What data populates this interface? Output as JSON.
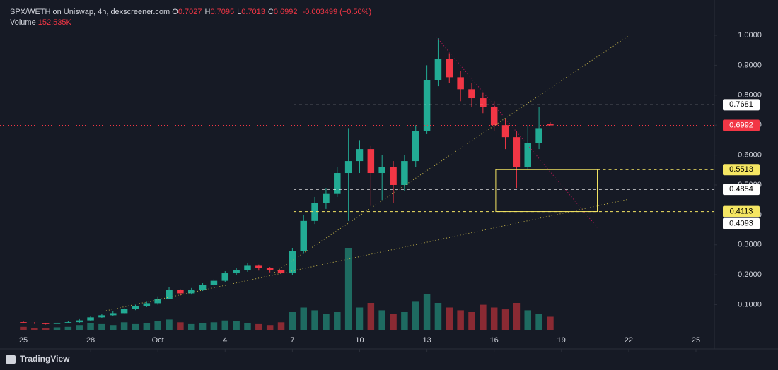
{
  "chart_data": {
    "type": "candlestick",
    "title": "SPX/WETH on Uniswap, 4h, dexscreener.com",
    "ohlc_header": [
      {
        "key": "O",
        "value": "0.7027"
      },
      {
        "key": "H",
        "value": "0.7095"
      },
      {
        "key": "L",
        "value": "0.7013"
      },
      {
        "key": "C",
        "value": "0.6992"
      }
    ],
    "change": "-0.003499 (−0.50%)",
    "volume_label": "Volume",
    "volume_value": "152.535K",
    "x": [
      0,
      0.5,
      1,
      1.5,
      2,
      2.5,
      3,
      3.5,
      4,
      4.5,
      5,
      5.5,
      6,
      6.5,
      7,
      7.5,
      8,
      8.5,
      9,
      9.5,
      10,
      10.5,
      11,
      11.5,
      12,
      12.5,
      13,
      13.5,
      14,
      14.5,
      15,
      15.5,
      16,
      16.5,
      17,
      17.5,
      18,
      18.5,
      19,
      19.5,
      20,
      20.5,
      21,
      21.5,
      22,
      22.5,
      23,
      23.5
    ],
    "open": [
      0.042,
      0.04,
      0.038,
      0.036,
      0.04,
      0.042,
      0.048,
      0.058,
      0.065,
      0.072,
      0.085,
      0.095,
      0.105,
      0.12,
      0.15,
      0.138,
      0.15,
      0.165,
      0.18,
      0.205,
      0.215,
      0.23,
      0.222,
      0.215,
      0.205,
      0.28,
      0.38,
      0.44,
      0.47,
      0.54,
      0.58,
      0.62,
      0.54,
      0.56,
      0.5,
      0.58,
      0.68,
      0.85,
      0.92,
      0.86,
      0.82,
      0.79,
      0.76,
      0.7,
      0.66,
      0.56,
      0.64,
      0.7027
    ],
    "high": [
      0.045,
      0.042,
      0.04,
      0.043,
      0.046,
      0.052,
      0.062,
      0.07,
      0.078,
      0.09,
      0.1,
      0.112,
      0.128,
      0.158,
      0.152,
      0.156,
      0.172,
      0.186,
      0.212,
      0.222,
      0.238,
      0.234,
      0.226,
      0.218,
      0.29,
      0.4,
      0.46,
      0.49,
      0.56,
      0.69,
      0.65,
      0.63,
      0.6,
      0.58,
      0.6,
      0.7,
      0.9,
      0.99,
      0.94,
      0.88,
      0.84,
      0.81,
      0.78,
      0.72,
      0.68,
      0.7,
      0.76,
      0.7095
    ],
    "low": [
      0.038,
      0.036,
      0.034,
      0.035,
      0.038,
      0.04,
      0.046,
      0.055,
      0.062,
      0.07,
      0.082,
      0.092,
      0.1,
      0.118,
      0.13,
      0.134,
      0.146,
      0.16,
      0.176,
      0.2,
      0.21,
      0.214,
      0.208,
      0.195,
      0.2,
      0.27,
      0.37,
      0.42,
      0.46,
      0.38,
      0.54,
      0.43,
      0.45,
      0.44,
      0.48,
      0.56,
      0.67,
      0.83,
      0.84,
      0.78,
      0.76,
      0.74,
      0.68,
      0.62,
      0.49,
      0.55,
      0.62,
      0.7013
    ],
    "close": [
      0.04,
      0.038,
      0.036,
      0.04,
      0.042,
      0.048,
      0.058,
      0.065,
      0.072,
      0.085,
      0.095,
      0.105,
      0.12,
      0.15,
      0.138,
      0.15,
      0.165,
      0.18,
      0.205,
      0.215,
      0.23,
      0.222,
      0.215,
      0.205,
      0.28,
      0.38,
      0.44,
      0.47,
      0.54,
      0.58,
      0.62,
      0.54,
      0.56,
      0.5,
      0.58,
      0.68,
      0.85,
      0.92,
      0.86,
      0.82,
      0.79,
      0.76,
      0.7,
      0.66,
      0.56,
      0.64,
      0.69,
      0.6992
    ],
    "volume": [
      40,
      30,
      25,
      35,
      40,
      60,
      80,
      70,
      60,
      90,
      70,
      80,
      100,
      120,
      90,
      70,
      80,
      90,
      110,
      100,
      80,
      70,
      60,
      90,
      200,
      250,
      220,
      180,
      200,
      900,
      250,
      300,
      220,
      180,
      200,
      320,
      400,
      300,
      250,
      220,
      200,
      280,
      250,
      230,
      300,
      220,
      180,
      150
    ],
    "volume_lim": [
      0,
      1000
    ],
    "up_color": "#22ab94",
    "down_color": "#f23645",
    "volume_up_color": "#1e6b61",
    "volume_down_color": "#8a2a33",
    "xlim": [
      -1.04,
      30.82
    ],
    "xticks": [
      {
        "value": 0,
        "label": "25"
      },
      {
        "value": 3,
        "label": "28"
      },
      {
        "value": 6,
        "label": "Oct"
      },
      {
        "value": 9,
        "label": "4"
      },
      {
        "value": 12,
        "label": "7"
      },
      {
        "value": 15,
        "label": "10"
      },
      {
        "value": 18,
        "label": "13"
      },
      {
        "value": 21,
        "label": "16"
      },
      {
        "value": 24,
        "label": "19"
      },
      {
        "value": 27,
        "label": "22"
      },
      {
        "value": 30,
        "label": "25"
      }
    ],
    "ylim": [
      0.014,
      1.118
    ],
    "yticks": [
      {
        "value": 0.1,
        "label": "0.1000"
      },
      {
        "value": 0.2,
        "label": "0.2000"
      },
      {
        "value": 0.3,
        "label": "0.3000"
      },
      {
        "value": 0.4,
        "label": "0.4000"
      },
      {
        "value": 0.5,
        "label": "0.5000"
      },
      {
        "value": 0.6,
        "label": "0.6000"
      },
      {
        "value": 0.7,
        "label": "0.7000"
      },
      {
        "value": 0.8,
        "label": "0.8000"
      },
      {
        "value": 0.9,
        "label": "0.9000"
      },
      {
        "value": 1,
        "label": "1.0000"
      }
    ],
    "grid": false,
    "levels": [
      {
        "value": 0.7681,
        "from": 12.05,
        "color": "#ffffff",
        "dash": "4 4",
        "label_bg": "#ffffff",
        "label_fg": "#000000"
      },
      {
        "value": 0.6992,
        "from": -1.04,
        "color": "#f23645",
        "dash": "1 3",
        "label_bg": "#f23645",
        "label_fg": "#ffffff"
      },
      {
        "value": 0.5513,
        "from": 25.6,
        "color": "#f5e663",
        "dash": "4 4",
        "label_bg": "#f5e663",
        "label_fg": "#000000"
      },
      {
        "value": 0.4854,
        "from": 12.05,
        "color": "#ffffff",
        "dash": "4 4",
        "label_bg": "#ffffff",
        "label_fg": "#000000"
      },
      {
        "value": 0.4113,
        "from": 12.05,
        "color": "#f5e663",
        "dash": "4 4",
        "label_bg": "#f5e663",
        "label_fg": "#000000"
      },
      {
        "value": 0.4093,
        "from": 30.82,
        "color": "#ffffff",
        "dash": "4 4",
        "label_bg": "#ffffff",
        "label_fg": "#000000"
      }
    ],
    "trendlines": [
      {
        "x": [
          11.2,
          27.03
        ],
        "y": [
          0.2075,
          1.0
        ],
        "color": "#c9b84a"
      },
      {
        "x": [
          3.69,
          27.03
        ],
        "y": [
          0.08,
          0.453
        ],
        "color": "#c9b84a"
      },
      {
        "x": [
          18.42,
          25.6
        ],
        "y": [
          0.995,
          0.358
        ],
        "color": "#c2185b"
      }
    ],
    "box": {
      "x": [
        21.07,
        25.6
      ],
      "y": [
        0.4113,
        0.5513
      ],
      "color": "#f5e663"
    }
  },
  "footer": "TradingView"
}
